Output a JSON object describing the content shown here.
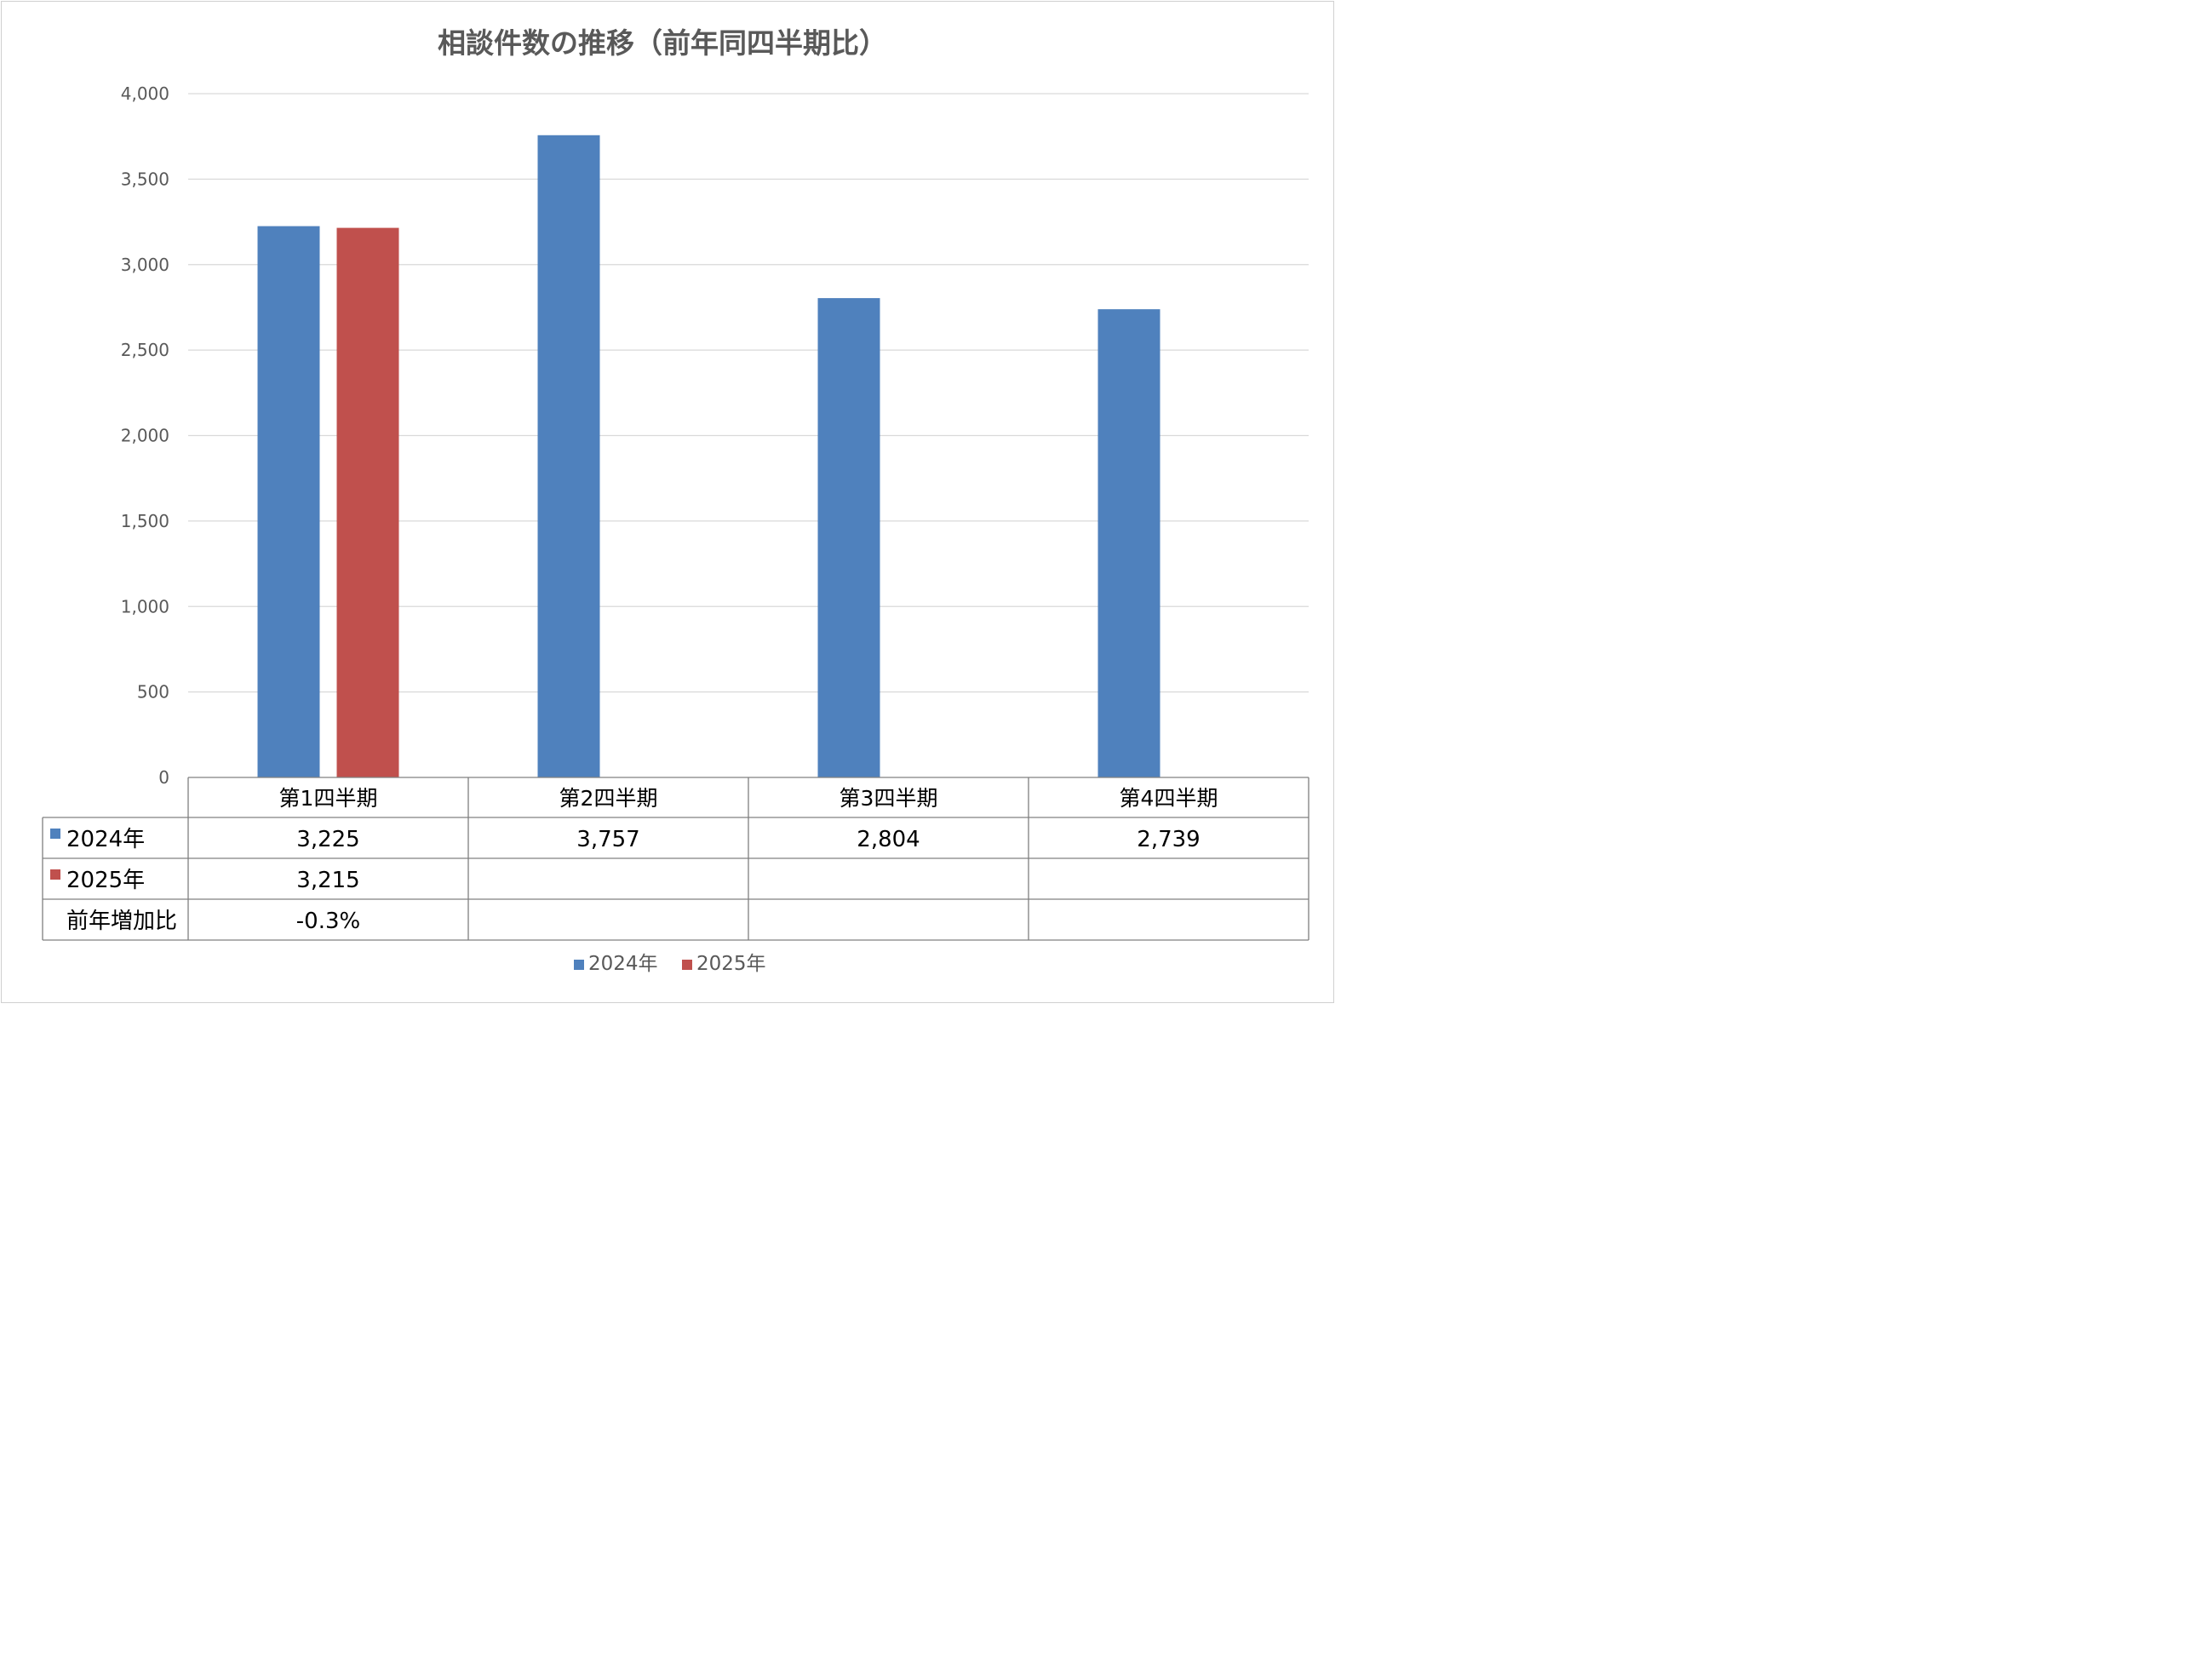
{
  "chart_data": {
    "type": "bar",
    "title": "相談件数の推移（前年同四半期比）",
    "categories": [
      "第1四半期",
      "第2四半期",
      "第3四半期",
      "第4四半期"
    ],
    "series": [
      {
        "name": "2024年",
        "values": [
          3225,
          3757,
          2804,
          2739
        ],
        "color": "#4F81BD"
      },
      {
        "name": "2025年",
        "values": [
          3215,
          null,
          null,
          null
        ],
        "color": "#C0504D"
      }
    ],
    "ylim": [
      0,
      4000
    ],
    "yticks": [
      "0",
      "500",
      "1,000",
      "1,500",
      "2,000",
      "2,500",
      "3,000",
      "3,500",
      "4,000"
    ],
    "grid": true,
    "legend": "bottom",
    "data_table": {
      "rows": [
        {
          "label": "2024年",
          "values": [
            "3,225",
            "3,757",
            "2,804",
            "2,739"
          ],
          "color": "#4F81BD"
        },
        {
          "label": "2025年",
          "values": [
            "3,215",
            "",
            "",
            ""
          ],
          "color": "#C0504D"
        },
        {
          "label": "前年増加比",
          "values": [
            "-0.3%",
            "",
            "",
            ""
          ]
        }
      ]
    }
  }
}
